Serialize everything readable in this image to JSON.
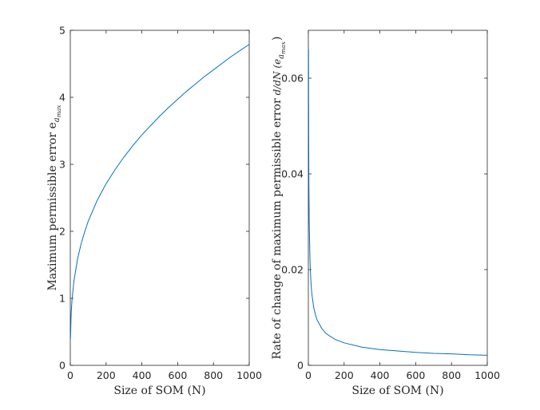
{
  "chart_data": [
    {
      "type": "line",
      "title": "",
      "xlabel": "Size of SOM (N)",
      "ylabel": "Maximum permissible error e",
      "ylabel_sub": "a",
      "ylabel_subsub": "max",
      "xlim": [
        0,
        1000
      ],
      "ylim": [
        0,
        5
      ],
      "xticks": [
        0,
        200,
        400,
        600,
        800,
        1000
      ],
      "yticks": [
        0,
        1,
        2,
        3,
        4,
        5
      ],
      "ytick_labels": [
        "0",
        "1",
        "2",
        "3",
        "4",
        "5"
      ],
      "grid": false,
      "series": [
        {
          "color": "#0072BD",
          "x": [
            1,
            5,
            10,
            20,
            40,
            60,
            80,
            100,
            150,
            200,
            250,
            300,
            350,
            400,
            450,
            500,
            550,
            600,
            650,
            700,
            750,
            800,
            850,
            900,
            950,
            1000
          ],
          "y": [
            0.4,
            0.78,
            0.99,
            1.25,
            1.58,
            1.81,
            1.99,
            2.15,
            2.46,
            2.71,
            2.92,
            3.11,
            3.28,
            3.44,
            3.58,
            3.72,
            3.85,
            3.97,
            4.09,
            4.2,
            4.31,
            4.41,
            4.51,
            4.61,
            4.7,
            4.79
          ]
        }
      ]
    },
    {
      "type": "line",
      "title": "",
      "xlabel": "Size of SOM (N)",
      "ylabel": "Rate of change of maximum permissible error",
      "ylabel_deriv": "d/dN (e",
      "ylabel_sub": "a",
      "ylabel_subsub": "max",
      "ylabel_close": ")",
      "xlim": [
        0,
        1000
      ],
      "ylim": [
        0,
        0.07
      ],
      "xticks": [
        0,
        200,
        400,
        600,
        800,
        1000
      ],
      "yticks": [
        0,
        0.02,
        0.04,
        0.06
      ],
      "ytick_labels": [
        "0",
        "0.02",
        "0.04",
        "0.06"
      ],
      "grid": false,
      "series": [
        {
          "color": "#0072BD",
          "x": [
            1,
            2,
            3,
            5,
            8,
            10,
            15,
            20,
            30,
            40,
            50,
            75,
            100,
            150,
            200,
            300,
            400,
            500,
            600,
            700,
            800,
            900,
            1000
          ],
          "y": [
            0.066,
            0.047,
            0.038,
            0.03,
            0.024,
            0.021,
            0.017,
            0.0148,
            0.0121,
            0.0105,
            0.0094,
            0.0077,
            0.0066,
            0.0054,
            0.0047,
            0.0038,
            0.0033,
            0.003,
            0.0027,
            0.0025,
            0.0024,
            0.0022,
            0.0021
          ]
        }
      ]
    }
  ]
}
